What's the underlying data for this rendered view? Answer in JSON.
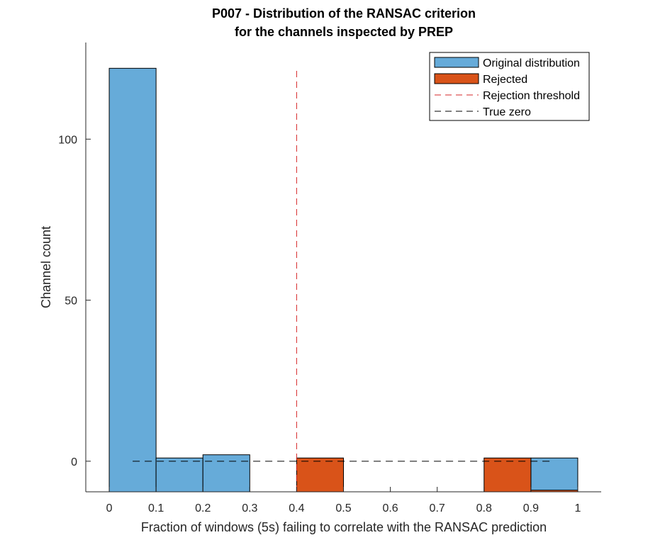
{
  "chart_data": {
    "type": "bar",
    "title": [
      "P007 - Distribution of the RANSAC criterion",
      "for the channels inspected by PREP"
    ],
    "xlabel": "Fraction of windows (5s) failing to correlate with the RANSAC prediction",
    "ylabel": "Channel count",
    "xlim": [
      -0.05,
      1.05
    ],
    "ylim": [
      -9.5,
      130
    ],
    "xticks": [
      0,
      0.1,
      0.2,
      0.3,
      0.4,
      0.5,
      0.6,
      0.7,
      0.8,
      0.9,
      1
    ],
    "xtick_labels": [
      "0",
      "0.1",
      "0.2",
      "0.3",
      "0.4",
      "0.5",
      "0.6",
      "0.7",
      "0.8",
      "0.9",
      "1"
    ],
    "yticks": [
      0,
      50,
      100
    ],
    "ytick_labels": [
      "0",
      "50",
      "100"
    ],
    "grid": false,
    "legend_position": "top-right",
    "bin_edges": [
      0,
      0.1,
      0.2,
      0.3,
      0.4,
      0.5,
      0.6,
      0.7,
      0.8,
      0.9,
      1.0
    ],
    "baseline": -9.5,
    "series": [
      {
        "name": "Original distribution",
        "color": "#66abd9",
        "bins": [
          {
            "x0": 0.0,
            "x1": 0.1,
            "value": 122
          },
          {
            "x0": 0.1,
            "x1": 0.2,
            "value": 1
          },
          {
            "x0": 0.2,
            "x1": 0.3,
            "value": 2
          },
          {
            "x0": 0.9,
            "x1": 1.0,
            "value": 1
          }
        ]
      },
      {
        "name": "Rejected",
        "color": "#d95319",
        "bins": [
          {
            "x0": 0.4,
            "x1": 0.5,
            "value": 1
          },
          {
            "x0": 0.8,
            "x1": 0.9,
            "value": 1
          },
          {
            "x0": 0.9,
            "x1": 1.0,
            "value": -9
          }
        ]
      }
    ],
    "lines": [
      {
        "name": "Rejection threshold",
        "color": "#d62728",
        "style": "dashed",
        "x": [
          0.4,
          0.4
        ],
        "y": [
          -9.5,
          122
        ]
      },
      {
        "name": "True zero",
        "color": "#000000",
        "style": "dashed",
        "x": [
          0.05,
          0.95
        ],
        "y": [
          0,
          0
        ]
      }
    ]
  }
}
